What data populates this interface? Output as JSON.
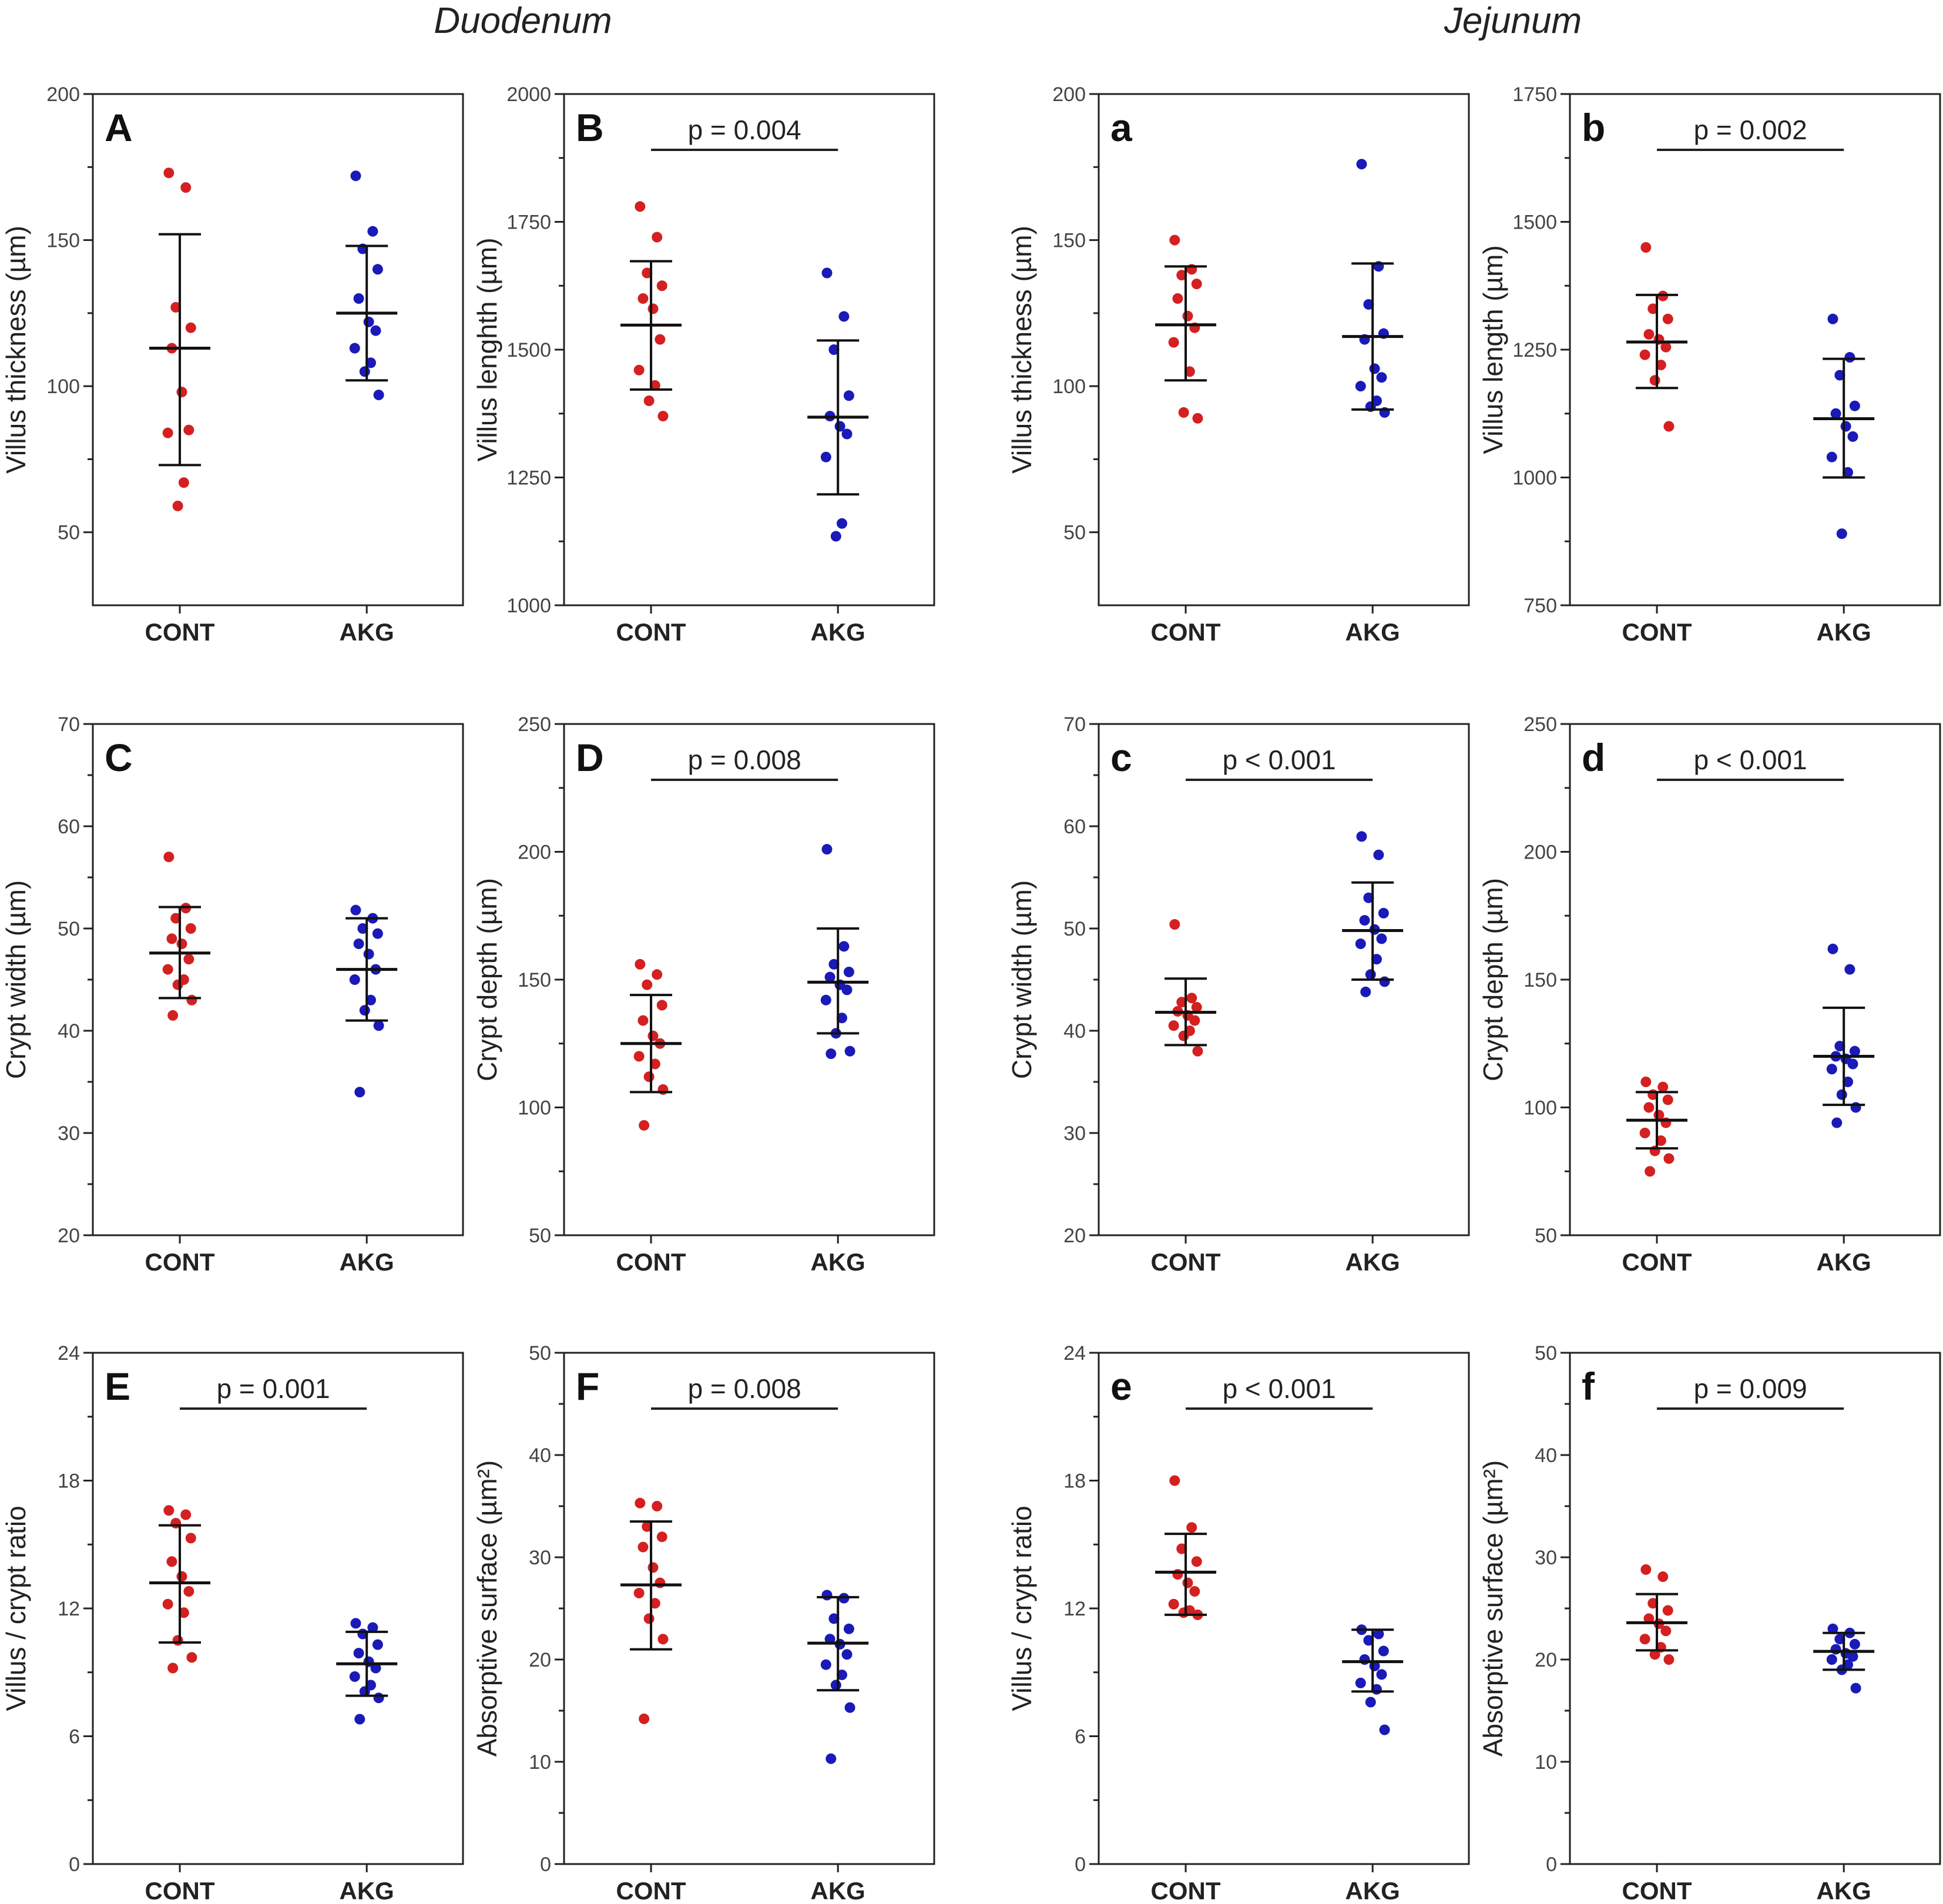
{
  "sections": {
    "duodenum": "Duodenum",
    "jejunum": "Jejunum"
  },
  "colors": {
    "cont": "#d42020",
    "akg": "#1a1ab8",
    "axis": "#222222"
  },
  "chart_data": [
    {
      "id": "A",
      "type": "scatter",
      "section": "Duodenum",
      "panel_label": "A",
      "ylabel": "Villus thickness (µm)",
      "ylim": [
        25,
        200
      ],
      "yticks": [
        50,
        100,
        150,
        200
      ],
      "categories": [
        "CONT",
        "AKG"
      ],
      "pvalue": "",
      "series": [
        {
          "name": "CONT",
          "mean": 113,
          "sd_low": 73,
          "sd_high": 152,
          "values": [
            173,
            168,
            127,
            120,
            113,
            98,
            85,
            84,
            67,
            59
          ]
        },
        {
          "name": "AKG",
          "mean": 125,
          "sd_low": 102,
          "sd_high": 148,
          "values": [
            172,
            153,
            147,
            140,
            130,
            122,
            119,
            113,
            108,
            105,
            97
          ]
        }
      ]
    },
    {
      "id": "B",
      "type": "scatter",
      "section": "Duodenum",
      "panel_label": "B",
      "ylabel": "Villus lenghth (µm)",
      "ylim": [
        1000,
        2000
      ],
      "yticks": [
        1000,
        1250,
        1500,
        1750,
        2000
      ],
      "categories": [
        "CONT",
        "AKG"
      ],
      "pvalue": "p = 0.004",
      "series": [
        {
          "name": "CONT",
          "mean": 1548,
          "sd_low": 1422,
          "sd_high": 1673,
          "values": [
            1780,
            1720,
            1650,
            1625,
            1600,
            1580,
            1520,
            1460,
            1430,
            1400,
            1370
          ]
        },
        {
          "name": "AKG",
          "mean": 1368,
          "sd_low": 1217,
          "sd_high": 1518,
          "values": [
            1650,
            1565,
            1500,
            1410,
            1370,
            1350,
            1335,
            1290,
            1160,
            1135
          ]
        }
      ]
    },
    {
      "id": "a",
      "type": "scatter",
      "section": "Jejunum",
      "panel_label": "a",
      "ylabel": "Villus thickness (µm)",
      "ylim": [
        25,
        200
      ],
      "yticks": [
        50,
        100,
        150,
        200
      ],
      "categories": [
        "CONT",
        "AKG"
      ],
      "pvalue": "",
      "series": [
        {
          "name": "CONT",
          "mean": 121,
          "sd_low": 102,
          "sd_high": 141,
          "values": [
            150,
            140,
            138,
            135,
            130,
            124,
            120,
            115,
            105,
            91,
            89
          ]
        },
        {
          "name": "AKG",
          "mean": 117,
          "sd_low": 92,
          "sd_high": 142,
          "values": [
            176,
            141,
            128,
            118,
            116,
            106,
            103,
            100,
            95,
            93,
            91
          ]
        }
      ]
    },
    {
      "id": "b",
      "type": "scatter",
      "section": "Jejunum",
      "panel_label": "b",
      "ylabel": "Villus length (µm)",
      "ylim": [
        750,
        1750
      ],
      "yticks": [
        750,
        1000,
        1250,
        1500,
        1750
      ],
      "categories": [
        "CONT",
        "AKG"
      ],
      "pvalue": "p = 0.002",
      "series": [
        {
          "name": "CONT",
          "mean": 1265,
          "sd_low": 1175,
          "sd_high": 1357,
          "values": [
            1450,
            1355,
            1330,
            1310,
            1280,
            1270,
            1255,
            1240,
            1220,
            1190,
            1100
          ]
        },
        {
          "name": "AKG",
          "mean": 1115,
          "sd_low": 1000,
          "sd_high": 1232,
          "values": [
            1310,
            1235,
            1200,
            1140,
            1125,
            1100,
            1080,
            1040,
            1010,
            890
          ]
        }
      ]
    },
    {
      "id": "C",
      "type": "scatter",
      "section": "Duodenum",
      "panel_label": "C",
      "ylabel": "Crypt width (µm)",
      "ylim": [
        20,
        70
      ],
      "yticks": [
        20,
        30,
        40,
        50,
        60,
        70
      ],
      "categories": [
        "CONT",
        "AKG"
      ],
      "pvalue": "",
      "series": [
        {
          "name": "CONT",
          "mean": 47.6,
          "sd_low": 43.2,
          "sd_high": 52.1,
          "values": [
            57,
            52,
            51,
            50,
            49,
            48.5,
            47,
            46,
            45,
            44.5,
            43,
            41.5
          ]
        },
        {
          "name": "AKG",
          "mean": 46,
          "sd_low": 41,
          "sd_high": 51,
          "values": [
            51.8,
            51,
            50,
            49.5,
            48.5,
            47.5,
            46,
            45,
            43,
            42,
            40.5,
            34
          ]
        }
      ]
    },
    {
      "id": "D",
      "type": "scatter",
      "section": "Duodenum",
      "panel_label": "D",
      "ylabel": "Crypt depth (µm)",
      "ylim": [
        50,
        250
      ],
      "yticks": [
        50,
        100,
        150,
        200,
        250
      ],
      "categories": [
        "CONT",
        "AKG"
      ],
      "pvalue": "p = 0.008",
      "series": [
        {
          "name": "CONT",
          "mean": 125,
          "sd_low": 106,
          "sd_high": 144,
          "values": [
            156,
            152,
            148,
            140,
            134,
            128,
            125,
            120,
            117,
            112,
            107,
            93
          ]
        },
        {
          "name": "AKG",
          "mean": 149,
          "sd_low": 129,
          "sd_high": 170,
          "values": [
            201,
            163,
            156,
            153,
            151,
            148,
            146,
            142,
            135,
            129,
            122,
            121
          ]
        }
      ]
    },
    {
      "id": "c",
      "type": "scatter",
      "section": "Jejunum",
      "panel_label": "c",
      "ylabel": "Crypt width (µm)",
      "ylim": [
        20,
        70
      ],
      "yticks": [
        20,
        30,
        40,
        50,
        60,
        70
      ],
      "categories": [
        "CONT",
        "AKG"
      ],
      "pvalue": "p < 0.001",
      "series": [
        {
          "name": "CONT",
          "mean": 41.8,
          "sd_low": 38.6,
          "sd_high": 45.1,
          "values": [
            50.4,
            43.2,
            42.8,
            42.3,
            41.9,
            41.5,
            41,
            40.5,
            40,
            39.5,
            38
          ]
        },
        {
          "name": "AKG",
          "mean": 49.8,
          "sd_low": 45,
          "sd_high": 54.5,
          "values": [
            59,
            57.2,
            53,
            51.5,
            50.8,
            49.9,
            49,
            48.5,
            47,
            45.5,
            44.8,
            43.8
          ]
        }
      ]
    },
    {
      "id": "d",
      "type": "scatter",
      "section": "Jejunum",
      "panel_label": "d",
      "ylabel": "Crypt depth (µm)",
      "ylim": [
        50,
        250
      ],
      "yticks": [
        50,
        100,
        150,
        200,
        250
      ],
      "categories": [
        "CONT",
        "AKG"
      ],
      "pvalue": "p < 0.001",
      "series": [
        {
          "name": "CONT",
          "mean": 95,
          "sd_low": 84,
          "sd_high": 106,
          "values": [
            110,
            108,
            105,
            103,
            100,
            97,
            94,
            90,
            87,
            83,
            80,
            75
          ]
        },
        {
          "name": "AKG",
          "mean": 120,
          "sd_low": 101,
          "sd_high": 139,
          "values": [
            162,
            154,
            124,
            122,
            120,
            119,
            117,
            115,
            110,
            105,
            100,
            94
          ]
        }
      ]
    },
    {
      "id": "E",
      "type": "scatter",
      "section": "Duodenum",
      "panel_label": "E",
      "ylabel": "Villus / crypt ratio",
      "ylim": [
        0,
        24
      ],
      "yticks": [
        0,
        6,
        12,
        18,
        24
      ],
      "categories": [
        "CONT",
        "AKG"
      ],
      "pvalue": "p = 0.001",
      "series": [
        {
          "name": "CONT",
          "mean": 13.2,
          "sd_low": 10.4,
          "sd_high": 15.9,
          "values": [
            16.6,
            16.4,
            16,
            15.3,
            14.2,
            13.5,
            12.8,
            12.2,
            11.8,
            10.5,
            9.7,
            9.2
          ]
        },
        {
          "name": "AKG",
          "mean": 9.4,
          "sd_low": 7.9,
          "sd_high": 10.9,
          "values": [
            11.3,
            11.1,
            10.8,
            10.3,
            9.9,
            9.5,
            9.2,
            8.8,
            8.4,
            8.1,
            7.8,
            6.8
          ]
        }
      ]
    },
    {
      "id": "F",
      "type": "scatter",
      "section": "Duodenum",
      "panel_label": "F",
      "ylabel": "Absorptive surface (µm²)",
      "ylim": [
        0,
        50
      ],
      "yticks": [
        0,
        10,
        20,
        30,
        40,
        50
      ],
      "categories": [
        "CONT",
        "AKG"
      ],
      "pvalue": "p = 0.008",
      "series": [
        {
          "name": "CONT",
          "mean": 27.3,
          "sd_low": 21,
          "sd_high": 33.5,
          "values": [
            35.3,
            35,
            33,
            32,
            31,
            29,
            27.5,
            26.5,
            25.5,
            24,
            22,
            14.2
          ]
        },
        {
          "name": "AKG",
          "mean": 21.6,
          "sd_low": 17,
          "sd_high": 26.1,
          "values": [
            26.3,
            26,
            24,
            23,
            22,
            21.5,
            20.5,
            19.5,
            18.5,
            17.5,
            15.3,
            10.3
          ]
        }
      ]
    },
    {
      "id": "e",
      "type": "scatter",
      "section": "Jejunum",
      "panel_label": "e",
      "ylabel": "Villus / crypt ratio",
      "ylim": [
        0,
        24
      ],
      "yticks": [
        0,
        6,
        12,
        18,
        24
      ],
      "categories": [
        "CONT",
        "AKG"
      ],
      "pvalue": "p < 0.001",
      "series": [
        {
          "name": "CONT",
          "mean": 13.7,
          "sd_low": 11.7,
          "sd_high": 15.5,
          "values": [
            18,
            15.8,
            14.8,
            14.2,
            13.6,
            13.2,
            12.8,
            12.2,
            11.9,
            11.8,
            11.7
          ]
        },
        {
          "name": "AKG",
          "mean": 9.5,
          "sd_low": 8.1,
          "sd_high": 11,
          "values": [
            11,
            10.8,
            10.5,
            10,
            9.6,
            9.3,
            8.9,
            8.5,
            8.2,
            7.6,
            6.3
          ]
        }
      ]
    },
    {
      "id": "f",
      "type": "scatter",
      "section": "Jejunum",
      "panel_label": "f",
      "ylabel": "Absorptive surface (µm²)",
      "ylim": [
        0,
        50
      ],
      "yticks": [
        0,
        10,
        20,
        30,
        40,
        50
      ],
      "categories": [
        "CONT",
        "AKG"
      ],
      "pvalue": "p = 0.009",
      "series": [
        {
          "name": "CONT",
          "mean": 23.6,
          "sd_low": 20.9,
          "sd_high": 26.4,
          "values": [
            28.8,
            28.1,
            25.5,
            24.8,
            24,
            23.5,
            22.8,
            22,
            21.2,
            20.5,
            20
          ]
        },
        {
          "name": "AKG",
          "mean": 20.8,
          "sd_low": 19,
          "sd_high": 22.6,
          "values": [
            23,
            22.6,
            22,
            21.5,
            21,
            20.6,
            20.3,
            20,
            19.5,
            19,
            17.2
          ]
        }
      ]
    }
  ]
}
